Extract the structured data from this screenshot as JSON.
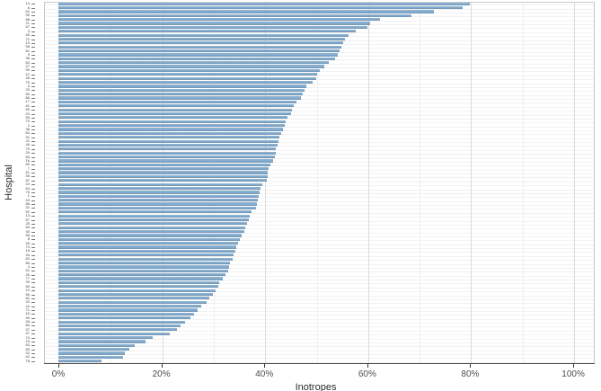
{
  "chart_data": {
    "type": "bar",
    "orientation": "horizontal",
    "title": "",
    "xlabel": "Inotropes",
    "ylabel": "Hospital",
    "x_ticks": [
      {
        "pct": 0,
        "label": "0%"
      },
      {
        "pct": 20,
        "label": "20%"
      },
      {
        "pct": 40,
        "label": "40%"
      },
      {
        "pct": 60,
        "label": "60%"
      },
      {
        "pct": 80,
        "label": "80%"
      },
      {
        "pct": 100,
        "label": "100%"
      }
    ],
    "xlim": [
      0,
      100
    ],
    "grid_minor_step": 10,
    "grid_major_step": 20,
    "legend": null,
    "bar_color": "#7ca5c8",
    "categories": [
      "14",
      "6",
      "52",
      "30",
      "88",
      "21",
      "67",
      "3",
      "45",
      "72",
      "19",
      "58",
      "81",
      "9",
      "36",
      "63",
      "27",
      "90",
      "12",
      "48",
      "75",
      "5",
      "33",
      "60",
      "86",
      "17",
      "41",
      "69",
      "24",
      "55",
      "79",
      "2",
      "38",
      "64",
      "91",
      "11",
      "46",
      "70",
      "29",
      "83",
      "16",
      "50",
      "7",
      "61",
      "35",
      "87",
      "22",
      "54",
      "76",
      "1",
      "43",
      "66",
      "31",
      "92",
      "13",
      "57",
      "25",
      "80",
      "40",
      "68",
      "8",
      "49",
      "73",
      "18",
      "34",
      "62",
      "85",
      "4",
      "51",
      "26",
      "77",
      "39",
      "65",
      "10",
      "56",
      "82",
      "20",
      "44",
      "71",
      "15",
      "59",
      "28",
      "84",
      "37",
      "47",
      "74",
      "23",
      "53",
      "89",
      "32",
      "42",
      "78"
    ],
    "values": [
      80.0,
      78.5,
      73.0,
      68.6,
      62.5,
      60.5,
      60.0,
      57.7,
      56.4,
      55.6,
      55.3,
      55.0,
      54.6,
      54.2,
      53.8,
      52.6,
      51.6,
      50.8,
      50.3,
      50.0,
      49.4,
      48.2,
      47.8,
      47.5,
      47.1,
      46.2,
      45.7,
      45.4,
      45.2,
      44.5,
      44.2,
      43.9,
      43.7,
      43.3,
      43.0,
      42.8,
      42.5,
      42.3,
      42.2,
      42.0,
      41.7,
      41.2,
      40.9,
      40.7,
      40.6,
      40.4,
      39.6,
      39.3,
      39.1,
      39.0,
      38.7,
      38.6,
      38.4,
      37.5,
      37.2,
      37.0,
      36.6,
      36.3,
      36.1,
      35.6,
      35.3,
      34.9,
      34.6,
      34.4,
      34.1,
      33.8,
      33.4,
      33.2,
      33.0,
      32.5,
      31.9,
      31.3,
      31.0,
      30.6,
      30.0,
      29.3,
      28.8,
      27.8,
      27.1,
      26.3,
      25.6,
      24.6,
      23.8,
      23.0,
      21.6,
      18.3,
      16.9,
      14.8,
      13.8,
      13.0,
      12.5,
      8.3
    ]
  }
}
